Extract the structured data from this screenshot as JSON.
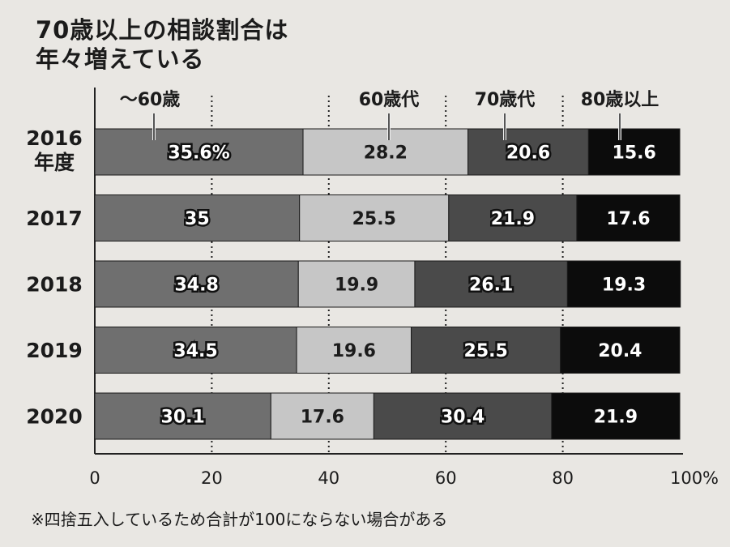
{
  "title_line1": "70歳以上の相談割合は",
  "title_line2": "年々増えている",
  "footnote": "※四捨五入しているため合計が100にならない場合がある",
  "colors": {
    "background": "#e9e7e3",
    "age_under60": "#6f6f6f",
    "age_60s": "#c6c6c6",
    "age_70s": "#4a4a4a",
    "age_80plus": "#0c0c0c"
  },
  "chart_data": {
    "type": "bar",
    "orientation": "horizontal",
    "stacked": true,
    "categories": [
      "2016\n年度",
      "2017",
      "2018",
      "2019",
      "2020"
    ],
    "series": [
      {
        "name": "〜60歳",
        "values": [
          35.6,
          35,
          34.8,
          34.5,
          30.1
        ],
        "labels": [
          "35.6%",
          "35",
          "34.8",
          "34.5",
          "30.1"
        ]
      },
      {
        "name": "60歳代",
        "values": [
          28.2,
          25.5,
          19.9,
          19.6,
          17.6
        ],
        "labels": [
          "28.2",
          "25.5",
          "19.9",
          "19.6",
          "17.6"
        ]
      },
      {
        "name": "70歳代",
        "values": [
          20.6,
          21.9,
          26.1,
          25.5,
          30.4
        ],
        "labels": [
          "20.6",
          "21.9",
          "26.1",
          "25.5",
          "30.4"
        ]
      },
      {
        "name": "80歳以上",
        "values": [
          15.6,
          17.6,
          19.3,
          20.4,
          21.9
        ],
        "labels": [
          "15.6",
          "17.6",
          "19.3",
          "20.4",
          "21.9"
        ]
      }
    ],
    "xlim": [
      0,
      100
    ],
    "xticks": [
      "0",
      "20",
      "40",
      "60",
      "80",
      "100%"
    ],
    "grid": "vertical dotted",
    "legend_placement": "top, labels pointing to first bar"
  }
}
